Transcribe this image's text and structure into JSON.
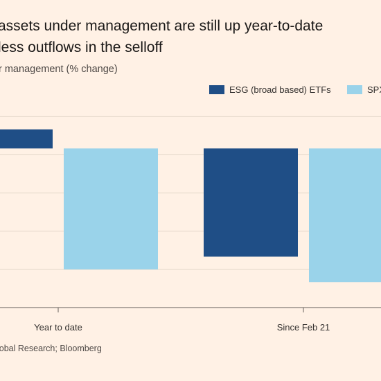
{
  "header": {
    "title_line1": "assets under management are still up year-to-date",
    "title_line2": "less outflows in the selloff",
    "subtitle": "r management (% change)"
  },
  "legend": {
    "items": [
      {
        "label": "ESG (broad based) ETFs",
        "color": "#1f4e86"
      },
      {
        "label": "SPX",
        "color": "#9ad3ea"
      }
    ]
  },
  "footer": {
    "source": "lobal Research; Bloomberg"
  },
  "chart_data": {
    "type": "bar",
    "categories": [
      "Year to date",
      "Since Feb 21"
    ],
    "series": [
      {
        "values": [
          1.5,
          -8.5
        ],
        "color": "#1f4e86"
      },
      {
        "values": [
          -9.5,
          -10.5
        ],
        "color": "#9ad3ea"
      }
    ],
    "ylim": [
      -12.5,
      3.5
    ],
    "grid": true,
    "legend_position": "top-right"
  }
}
